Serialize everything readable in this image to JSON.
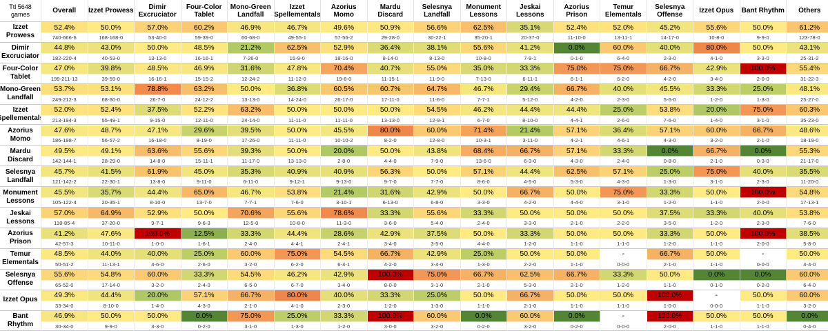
{
  "corner_label": "Ttl 5648 games",
  "chart_data": {
    "type": "heatmap",
    "title": "",
    "total_games_label": "Ttl 5648 games",
    "columns": [
      "Overall",
      "Izzet Prowess",
      "Dimir Excruciator",
      "Four-Color Tablet",
      "Mono-Green Landfall",
      "Izzet Spellementals",
      "Azorius Momo",
      "Mardu Discard",
      "Selesnya Landfall",
      "Monument Lessons",
      "Jeskai Lessons",
      "Azorius Prison",
      "Temur Elementals",
      "Selesnya Offense",
      "Izzet Opus",
      "Bant Rhythm",
      "Others"
    ],
    "rows": [
      {
        "name": "Izzet Prowess",
        "pct": [
          "52.4%",
          "50.0%",
          "57.0%",
          "60.2%",
          "46.9%",
          "46.7%",
          "49.6%",
          "50.9%",
          "56.6%",
          "62.5%",
          "35.1%",
          "52.4%",
          "52.0%",
          "45.2%",
          "55.6%",
          "50.0%",
          "61.2%"
        ],
        "values": [
          52.4,
          50.0,
          57.0,
          60.2,
          46.9,
          46.7,
          49.6,
          50.9,
          56.6,
          62.5,
          35.1,
          52.4,
          52.0,
          45.2,
          55.6,
          50.0,
          61.2
        ],
        "records": [
          "740-666-6",
          "168-168-0",
          "53-40-0",
          "59-39-0",
          "60-68-0",
          "49-55-1",
          "57-56-2",
          "29-28-0",
          "30-22-1",
          "35-20-1",
          "20-37-0",
          "11-10-0",
          "13-11-1",
          "14-17-0",
          "10-8-0",
          "9-9-0",
          "123-78-0"
        ]
      },
      {
        "name": "Dimir Excruciator",
        "pct": [
          "44.8%",
          "43.0%",
          "50.0%",
          "48.5%",
          "21.2%",
          "62.5%",
          "52.9%",
          "36.4%",
          "38.1%",
          "55.6%",
          "41.2%",
          "0.0%",
          "60.0%",
          "40.0%",
          "80.0%",
          "50.0%",
          "43.1%"
        ],
        "values": [
          44.8,
          43.0,
          50.0,
          48.5,
          21.2,
          62.5,
          52.9,
          36.4,
          38.1,
          55.6,
          41.2,
          0.0,
          60.0,
          40.0,
          80.0,
          50.0,
          43.1
        ],
        "records": [
          "182-220-4",
          "40-53-0",
          "13-13-0",
          "16-16-1",
          "7-26-0",
          "15-9-0",
          "18-16-0",
          "8-14-0",
          "8-13-0",
          "10-8-0",
          "7-9-1",
          "0-1-0",
          "6-4-0",
          "2-3-0",
          "4-1-0",
          "3-3-0",
          "25-31-2"
        ]
      },
      {
        "name": "Four-Color Tablet",
        "pct": [
          "47.0%",
          "39.8%",
          "48.5%",
          "46.9%",
          "31.6%",
          "47.8%",
          "70.4%",
          "40.7%",
          "55.0%",
          "35.0%",
          "33.3%",
          "75.0%",
          "75.0%",
          "66.7%",
          "42.9%",
          "100.0%",
          "55.4%"
        ],
        "values": [
          47.0,
          39.8,
          48.5,
          46.9,
          31.6,
          47.8,
          70.4,
          40.7,
          55.0,
          35.0,
          33.3,
          75.0,
          75.0,
          66.7,
          42.9,
          100.0,
          55.4
        ],
        "records": [
          "199-211-13",
          "39-59-0",
          "16-16-1",
          "15-15-2",
          "12-24-2",
          "11-12-0",
          "19-8-0",
          "11-15-1",
          "11-9-0",
          "7-13-0",
          "6-11-1",
          "6-1-1",
          "6-2-0",
          "4-2-0",
          "3-4-0",
          "2-0-0",
          "31-22-3"
        ]
      },
      {
        "name": "Mono-Green Landfall",
        "pct": [
          "53.7%",
          "53.1%",
          "78.8%",
          "63.2%",
          "50.0%",
          "36.8%",
          "60.5%",
          "60.7%",
          "64.7%",
          "46.7%",
          "29.4%",
          "66.7%",
          "40.0%",
          "45.5%",
          "33.3%",
          "25.0%",
          "48.1%"
        ],
        "values": [
          53.7,
          53.1,
          78.8,
          63.2,
          50.0,
          36.8,
          60.5,
          60.7,
          64.7,
          46.7,
          29.4,
          66.7,
          40.0,
          45.5,
          33.3,
          25.0,
          48.1
        ],
        "records": [
          "249-212-3",
          "68-60-0",
          "26-7-0",
          "24-12-2",
          "13-13-0",
          "14-24-0",
          "26-17-0",
          "17-11-0",
          "11-6-0",
          "7-7-1",
          "5-12-0",
          "4-2-0",
          "2-3-0",
          "5-6-0",
          "1-2-0",
          "1-3-0",
          "25-27-0"
        ]
      },
      {
        "name": "Izzet Spellementals",
        "pct": [
          "52.0%",
          "52.4%",
          "37.5%",
          "52.2%",
          "63.2%",
          "50.0%",
          "50.0%",
          "50.0%",
          "54.5%",
          "46.2%",
          "44.4%",
          "44.4%",
          "25.0%",
          "53.8%",
          "20.0%",
          "75.0%",
          "60.3%"
        ],
        "values": [
          52.0,
          52.4,
          37.5,
          52.2,
          63.2,
          50.0,
          50.0,
          50.0,
          54.5,
          46.2,
          44.4,
          44.4,
          25.0,
          53.8,
          20.0,
          75.0,
          60.3
        ],
        "records": [
          "213-194-3",
          "55-49-1",
          "9-15-0",
          "12-11-0",
          "24-14-0",
          "11-11-0",
          "11-11-0",
          "13-13-0",
          "12-9-1",
          "6-7-0",
          "8-10-0",
          "4-4-1",
          "2-6-0",
          "7-6-0",
          "1-4-0",
          "3-1-0",
          "35-23-0"
        ]
      },
      {
        "name": "Azorius Momo",
        "pct": [
          "47.6%",
          "48.7%",
          "47.1%",
          "29.6%",
          "39.5%",
          "50.0%",
          "45.5%",
          "80.0%",
          "60.0%",
          "71.4%",
          "21.4%",
          "57.1%",
          "36.4%",
          "57.1%",
          "60.0%",
          "66.7%",
          "48.6%"
        ],
        "values": [
          47.6,
          48.7,
          47.1,
          29.6,
          39.5,
          50.0,
          45.5,
          80.0,
          60.0,
          71.4,
          21.4,
          57.1,
          36.4,
          57.1,
          60.0,
          66.7,
          48.6
        ],
        "records": [
          "186-198-7",
          "56-57-2",
          "16-18-0",
          "8-19-0",
          "17-26-0",
          "11-11-0",
          "10-10-2",
          "8-2-0",
          "12-8-0",
          "10-3-1",
          "3-11-0",
          "4-2-1",
          "4-6-1",
          "4-3-0",
          "3-2-0",
          "2-1-0",
          "18-19-0"
        ]
      },
      {
        "name": "Mardu Discard",
        "pct": [
          "49.5%",
          "49.1%",
          "63.6%",
          "55.6%",
          "39.3%",
          "50.0%",
          "20.0%",
          "50.0%",
          "43.8%",
          "68.4%",
          "66.7%",
          "57.1%",
          "33.3%",
          "0.0%",
          "66.7%",
          "0.0%",
          "55.3%"
        ],
        "values": [
          49.5,
          49.1,
          63.6,
          55.6,
          39.3,
          50.0,
          20.0,
          50.0,
          43.8,
          68.4,
          66.7,
          57.1,
          33.3,
          0.0,
          66.7,
          0.0,
          55.3
        ],
        "records": [
          "142-144-1",
          "28-29-0",
          "14-8-0",
          "15-11-1",
          "11-17-0",
          "13-13-0",
          "2-8-0",
          "4-4-0",
          "7-9-0",
          "13-6-0",
          "6-3-0",
          "4-3-0",
          "2-4-0",
          "0-8-0",
          "2-1-0",
          "0-3-0",
          "21-17-0"
        ]
      },
      {
        "name": "Selesnya Landfall",
        "pct": [
          "45.7%",
          "41.5%",
          "61.9%",
          "45.0%",
          "35.3%",
          "40.9%",
          "40.9%",
          "56.3%",
          "50.0%",
          "57.1%",
          "44.4%",
          "62.5%",
          "57.1%",
          "25.0%",
          "75.0%",
          "40.0%",
          "35.5%"
        ],
        "values": [
          45.7,
          41.5,
          61.9,
          45.0,
          35.3,
          40.9,
          40.9,
          56.3,
          50.0,
          57.1,
          44.4,
          62.5,
          57.1,
          25.0,
          75.0,
          40.0,
          35.5
        ],
        "records": [
          "121-142-2",
          "22-30-1",
          "13-8-0",
          "9-11-0",
          "6-11-0",
          "9-12-1",
          "9-13-0",
          "9-7-0",
          "7-7-0",
          "8-6-0",
          "4-5-0",
          "5-3-0",
          "4-3-0",
          "1-3-0",
          "3-1-0",
          "2-3-0",
          "11-20-0"
        ]
      },
      {
        "name": "Monument Lessons",
        "pct": [
          "45.5%",
          "35.7%",
          "44.4%",
          "65.0%",
          "46.7%",
          "53.8%",
          "21.4%",
          "31.6%",
          "42.9%",
          "50.0%",
          "66.7%",
          "50.0%",
          "75.0%",
          "33.3%",
          "50.0%",
          "100.0%",
          "54.8%"
        ],
        "values": [
          45.5,
          35.7,
          44.4,
          65.0,
          46.7,
          53.8,
          21.4,
          31.6,
          42.9,
          50.0,
          66.7,
          50.0,
          75.0,
          33.3,
          50.0,
          100.0,
          54.8
        ],
        "records": [
          "105-122-4",
          "20-35-1",
          "8-10-0",
          "13-7-0",
          "7-7-1",
          "7-6-0",
          "3-10-1",
          "6-13-0",
          "6-8-0",
          "3-3-0",
          "4-2-0",
          "4-4-0",
          "3-1-0",
          "1-2-0",
          "1-1-0",
          "2-0-0",
          "17-13-1"
        ]
      },
      {
        "name": "Jeskai Lessons",
        "pct": [
          "57.0%",
          "64.9%",
          "52.9%",
          "50.0%",
          "70.6%",
          "55.6%",
          "78.6%",
          "33.3%",
          "55.6%",
          "33.3%",
          "50.0%",
          "50.0%",
          "50.0%",
          "37.5%",
          "33.3%",
          "40.0%",
          "53.8%"
        ],
        "values": [
          57.0,
          64.9,
          52.9,
          50.0,
          70.6,
          55.6,
          78.6,
          33.3,
          55.6,
          33.3,
          50.0,
          50.0,
          50.0,
          37.5,
          33.3,
          40.0,
          53.8
        ],
        "records": [
          "118-85-4",
          "37-20-0",
          "9-7-1",
          "9-6-3",
          "12-5-0",
          "10-8-0",
          "11-3-0",
          "3-6-0",
          "5-4-0",
          "2-4-0",
          "3-3-0",
          "2-1-0",
          "2-2-0",
          "3-5-0",
          "1-2-0",
          "2-3-0",
          "7-6-0"
        ]
      },
      {
        "name": "Azorius Prison",
        "pct": [
          "41.2%",
          "47.6%",
          "100.0%",
          "12.5%",
          "33.3%",
          "44.4%",
          "28.6%",
          "42.9%",
          "37.5%",
          "50.0%",
          "33.3%",
          "50.0%",
          "50.0%",
          "33.3%",
          "50.0%",
          "100.0%",
          "38.5%"
        ],
        "values": [
          41.2,
          47.6,
          100.0,
          12.5,
          33.3,
          44.4,
          28.6,
          42.9,
          37.5,
          50.0,
          33.3,
          50.0,
          50.0,
          33.3,
          50.0,
          100.0,
          38.5
        ],
        "records": [
          "42-57-3",
          "10-11-0",
          "1-0-0",
          "1-6-1",
          "2-4-0",
          "4-4-1",
          "2-4-1",
          "3-4-0",
          "3-5-0",
          "4-4-0",
          "1-2-0",
          "1-1-0",
          "1-1-0",
          "1-2-0",
          "1-1-0",
          "2-0-0",
          "5-8-0"
        ]
      },
      {
        "name": "Temur Elementals",
        "pct": [
          "48.5%",
          "44.0%",
          "40.0%",
          "25.0%",
          "60.0%",
          "75.0%",
          "54.5%",
          "66.7%",
          "42.9%",
          "25.0%",
          "50.0%",
          "50.0%",
          "-",
          "66.7%",
          "50.0%",
          "-",
          "50.0%"
        ],
        "values": [
          48.5,
          44.0,
          40.0,
          25.0,
          60.0,
          75.0,
          54.5,
          66.7,
          42.9,
          25.0,
          50.0,
          50.0,
          null,
          66.7,
          50.0,
          null,
          50.0
        ],
        "records": [
          "50-51-2",
          "11-13-1",
          "4-6-0",
          "2-6-0",
          "3-2-0",
          "6-2-0",
          "6-4-1",
          "4-2-0",
          "3-4-0",
          "1-3-0",
          "2-2-0",
          "1-1-0",
          "0-0-0",
          "2-1-0",
          "1-1-0",
          "0-0-0",
          "4-4-0"
        ]
      },
      {
        "name": "Selesnya Offense",
        "pct": [
          "55.6%",
          "54.8%",
          "60.0%",
          "33.3%",
          "54.5%",
          "46.2%",
          "42.9%",
          "100.0%",
          "75.0%",
          "66.7%",
          "62.5%",
          "66.7%",
          "33.3%",
          "50.0%",
          "0.0%",
          "0.0%",
          "60.0%"
        ],
        "values": [
          55.6,
          54.8,
          60.0,
          33.3,
          54.5,
          46.2,
          42.9,
          100.0,
          75.0,
          66.7,
          62.5,
          66.7,
          33.3,
          50.0,
          0.0,
          0.0,
          60.0
        ],
        "records": [
          "65-52-0",
          "17-14-0",
          "3-2-0",
          "2-4-0",
          "6-5-0",
          "6-7-0",
          "3-4-0",
          "8-0-0",
          "3-1-0",
          "2-1-0",
          "5-3-0",
          "2-1-0",
          "1-2-0",
          "1-1-0",
          "0-1-0",
          "0-2-0",
          "6-4-0"
        ]
      },
      {
        "name": "Izzet Opus",
        "pct": [
          "49.3%",
          "44.4%",
          "20.0%",
          "57.1%",
          "66.7%",
          "80.0%",
          "40.0%",
          "33.3%",
          "25.0%",
          "50.0%",
          "66.7%",
          "50.0%",
          "50.0%",
          "100.0%",
          "-",
          "50.0%",
          "60.0%"
        ],
        "values": [
          49.3,
          44.4,
          20.0,
          57.1,
          66.7,
          80.0,
          40.0,
          33.3,
          25.0,
          50.0,
          66.7,
          50.0,
          50.0,
          100.0,
          null,
          50.0,
          60.0
        ],
        "records": [
          "33-34-0",
          "8-10-0",
          "1-4-0",
          "4-3-0",
          "2-1-0",
          "4-1-0",
          "2-3-0",
          "1-2-0",
          "1-3-0",
          "1-1-0",
          "2-1-0",
          "1-1-0",
          "1-1-0",
          "1-0-0",
          "0-0-0",
          "1-1-0",
          "3-2-0"
        ]
      },
      {
        "name": "Bant Rhythm",
        "pct": [
          "46.9%",
          "50.0%",
          "50.0%",
          "0.0%",
          "75.0%",
          "25.0%",
          "33.3%",
          "100.0%",
          "60.0%",
          "0.0%",
          "60.0%",
          "0.0%",
          "-",
          "100.0%",
          "50.0%",
          "50.0%",
          "0.0%"
        ],
        "values": [
          46.9,
          50.0,
          50.0,
          0.0,
          75.0,
          25.0,
          33.3,
          100.0,
          60.0,
          0.0,
          60.0,
          0.0,
          null,
          100.0,
          50.0,
          50.0,
          0.0
        ],
        "records": [
          "30-34-0",
          "9-9-0",
          "3-3-0",
          "0-2-0",
          "3-1-0",
          "1-3-0",
          "1-2-0",
          "3-0-0",
          "3-2-0",
          "0-2-0",
          "3-2-0",
          "0-2-0",
          "0-0-0",
          "2-0-0",
          "1-1-0",
          "1-1-0",
          "0-4-0"
        ]
      }
    ]
  }
}
